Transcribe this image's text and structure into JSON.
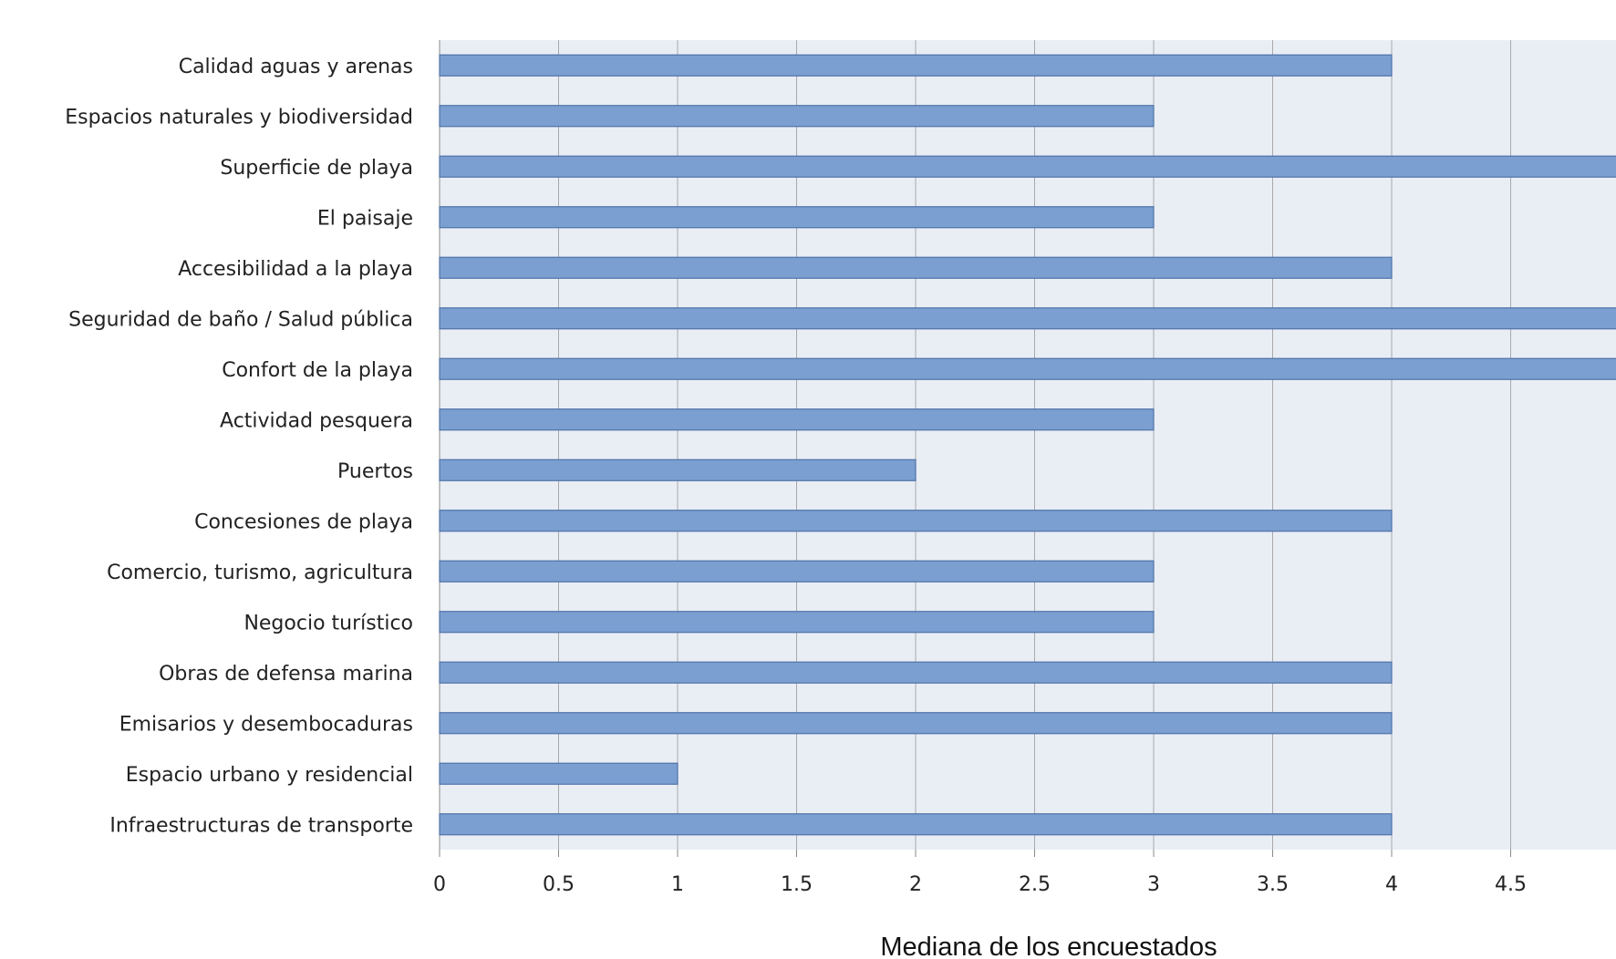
{
  "chart_data": {
    "type": "bar",
    "orientation": "horizontal",
    "categories": [
      "Calidad aguas y arenas",
      "Espacios naturales y biodiversidad",
      "Superficie de playa",
      "El paisaje",
      "Accesibilidad a la playa",
      "Seguridad de baño / Salud pública",
      "Confort de la playa",
      "Actividad pesquera",
      "Puertos",
      "Concesiones de playa",
      "Comercio, turismo, agricultura",
      "Negocio turístico",
      "Obras de defensa marina",
      "Emisarios y desembocaduras",
      "Espacio urbano y residencial",
      "Infraestructuras de transporte"
    ],
    "values": [
      4,
      3,
      5,
      3,
      4,
      5,
      5,
      3,
      2,
      4,
      3,
      3,
      4,
      4,
      1,
      4
    ],
    "xlabel": "Mediana de los encuestados",
    "xlim": [
      0,
      5
    ],
    "x_ticks": [
      "0",
      "0.5",
      "1",
      "1.5",
      "2",
      "2.5",
      "3",
      "3.5",
      "4",
      "4.5"
    ],
    "grid": true,
    "colors": {
      "bar_fill": "#7B9FD0",
      "bar_stroke": "#4F73A8",
      "plot_bg": "#E9EEF5",
      "grid": "#A9A9A9"
    }
  }
}
